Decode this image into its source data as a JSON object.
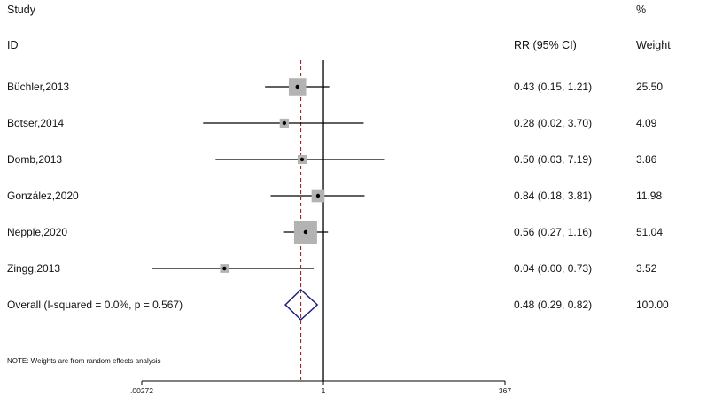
{
  "headers": {
    "study_top": "Study",
    "study_bottom": "ID",
    "effect": "RR (95% CI)",
    "weight_top": "%",
    "weight_bottom": "Weight"
  },
  "note": "NOTE: Weights are from random effects analysis",
  "chart_data": {
    "type": "forest",
    "x_scale": "log",
    "null_line": 1,
    "overall_line": 0.48,
    "xticks": [
      {
        "value": 0.00272,
        "label": ".00272"
      },
      {
        "value": 1,
        "label": "1"
      },
      {
        "value": 367,
        "label": "367"
      }
    ],
    "studies": [
      {
        "id": "Büchler,2013",
        "rr": 0.43,
        "lo": 0.15,
        "hi": 1.21,
        "ci_text": "0.43 (0.15, 1.21)",
        "weight": 25.5,
        "weight_text": "25.50"
      },
      {
        "id": "Botser,2014",
        "rr": 0.28,
        "lo": 0.02,
        "hi": 3.7,
        "ci_text": "0.28 (0.02, 3.70)",
        "weight": 4.09,
        "weight_text": "4.09"
      },
      {
        "id": "Domb,2013",
        "rr": 0.5,
        "lo": 0.03,
        "hi": 7.19,
        "ci_text": "0.50 (0.03, 7.19)",
        "weight": 3.86,
        "weight_text": "3.86"
      },
      {
        "id": "González,2020",
        "rr": 0.84,
        "lo": 0.18,
        "hi": 3.81,
        "ci_text": "0.84 (0.18, 3.81)",
        "weight": 11.98,
        "weight_text": "11.98"
      },
      {
        "id": "Nepple,2020",
        "rr": 0.56,
        "lo": 0.27,
        "hi": 1.16,
        "ci_text": "0.56 (0.27, 1.16)",
        "weight": 51.04,
        "weight_text": "51.04"
      },
      {
        "id": "Zingg,2013",
        "rr": 0.04,
        "lo": 0.0,
        "hi": 0.73,
        "ci_text": "0.04 (0.00, 0.73)",
        "weight": 3.52,
        "weight_text": "3.52"
      }
    ],
    "overall": {
      "label": "Overall  (I-squared = 0.0%, p = 0.567)",
      "rr": 0.48,
      "lo": 0.29,
      "hi": 0.82,
      "ci_text": "0.48 (0.29, 0.82)",
      "weight_text": "100.00"
    },
    "colors": {
      "box": "#b3b3b3",
      "line": "#000000",
      "diamond": "#1a1f7a",
      "overall_line": "#a0262a"
    }
  }
}
